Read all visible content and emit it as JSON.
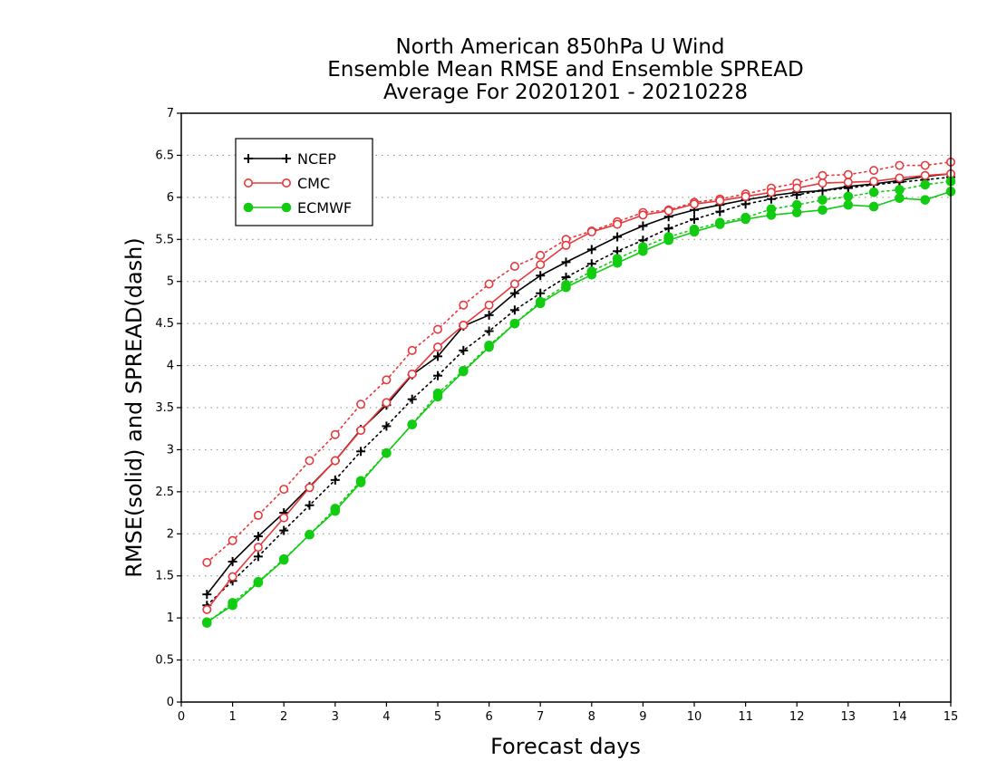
{
  "chart_data": {
    "type": "line",
    "title_lines": [
      "North American 850hPa U Wind",
      "Ensemble Mean RMSE and Ensemble SPREAD",
      "Average For 20201201 - 20210228"
    ],
    "xlabel": "Forecast days",
    "ylabel": "RMSE(solid) and SPREAD(dash)",
    "xlim": [
      0,
      15
    ],
    "ylim": [
      0,
      7
    ],
    "xticks": [
      "0",
      "1",
      "2",
      "3",
      "4",
      "5",
      "6",
      "7",
      "8",
      "9",
      "10",
      "11",
      "12",
      "13",
      "14",
      "15"
    ],
    "yticks": [
      "0",
      "0.5",
      "1",
      "1.5",
      "2",
      "2.5",
      "3",
      "3.5",
      "4",
      "4.5",
      "5",
      "5.5",
      "6",
      "6.5",
      "7"
    ],
    "grid": "horizontal dotted",
    "legend_position": "top-left",
    "x": [
      0.5,
      1,
      1.5,
      2,
      2.5,
      3,
      3.5,
      4,
      4.5,
      5,
      5.5,
      6,
      6.5,
      7,
      7.5,
      8,
      8.5,
      9,
      9.5,
      10,
      10.5,
      11,
      11.5,
      12,
      12.5,
      13,
      13.5,
      14,
      14.5,
      15
    ],
    "series": [
      {
        "name": "NCEP",
        "color": "#000000",
        "marker": "plus",
        "rmse": [
          1.28,
          1.67,
          1.97,
          2.25,
          2.56,
          2.87,
          3.24,
          3.53,
          3.89,
          4.11,
          4.47,
          4.6,
          4.86,
          5.07,
          5.23,
          5.38,
          5.53,
          5.66,
          5.77,
          5.85,
          5.91,
          5.97,
          6.02,
          6.06,
          6.08,
          6.13,
          6.16,
          6.2,
          6.25,
          6.28
        ],
        "spread": [
          1.15,
          1.44,
          1.73,
          2.04,
          2.34,
          2.64,
          2.98,
          3.28,
          3.6,
          3.88,
          4.18,
          4.41,
          4.66,
          4.86,
          5.05,
          5.21,
          5.36,
          5.49,
          5.63,
          5.74,
          5.83,
          5.92,
          5.98,
          6.03,
          6.08,
          6.11,
          6.15,
          6.18,
          6.21,
          6.24
        ]
      },
      {
        "name": "CMC",
        "color": "#e8383b",
        "marker": "open-circle",
        "rmse": [
          1.1,
          1.49,
          1.84,
          2.19,
          2.55,
          2.87,
          3.23,
          3.56,
          3.9,
          4.22,
          4.48,
          4.72,
          4.97,
          5.2,
          5.43,
          5.59,
          5.68,
          5.79,
          5.84,
          5.92,
          5.96,
          6.01,
          6.06,
          6.11,
          6.17,
          6.18,
          6.19,
          6.23,
          6.26,
          6.28
        ],
        "spread": [
          1.66,
          1.92,
          2.22,
          2.53,
          2.87,
          3.18,
          3.54,
          3.83,
          4.18,
          4.43,
          4.72,
          4.97,
          5.18,
          5.31,
          5.5,
          5.6,
          5.71,
          5.82,
          5.85,
          5.94,
          5.98,
          6.04,
          6.11,
          6.17,
          6.26,
          6.27,
          6.32,
          6.38,
          6.38,
          6.42
        ]
      },
      {
        "name": "ECMWF",
        "color": "#11cc11",
        "marker": "filled-circle",
        "rmse": [
          0.95,
          1.15,
          1.42,
          1.69,
          1.99,
          2.27,
          2.61,
          2.96,
          3.3,
          3.63,
          3.93,
          4.22,
          4.5,
          4.74,
          4.93,
          5.08,
          5.22,
          5.36,
          5.49,
          5.59,
          5.68,
          5.74,
          5.79,
          5.82,
          5.85,
          5.91,
          5.89,
          5.99,
          5.97,
          6.07
        ],
        "spread": [
          0.94,
          1.18,
          1.43,
          1.7,
          1.99,
          2.3,
          2.63,
          2.96,
          3.3,
          3.67,
          3.94,
          4.24,
          4.5,
          4.76,
          4.96,
          5.12,
          5.27,
          5.41,
          5.53,
          5.62,
          5.7,
          5.76,
          5.86,
          5.91,
          5.97,
          6.01,
          6.06,
          6.09,
          6.15,
          6.19
        ]
      }
    ]
  }
}
